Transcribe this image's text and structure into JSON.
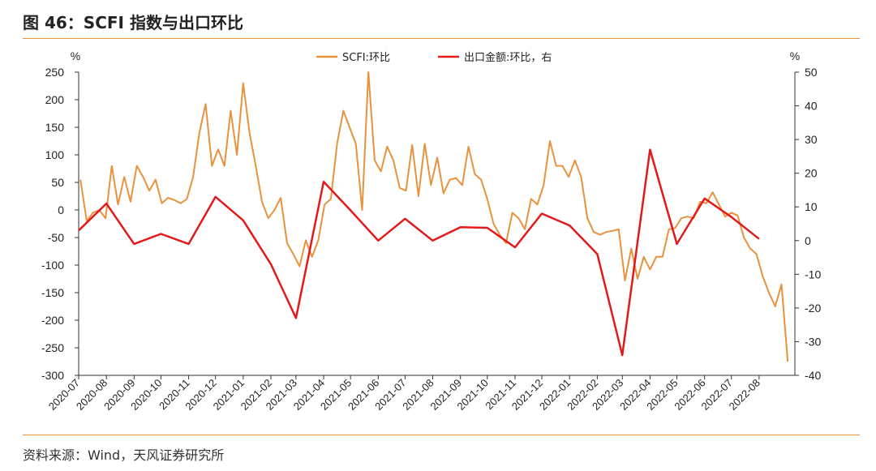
{
  "header": {
    "title": "图 46：SCFI 指数与出口环比"
  },
  "footer": {
    "source": "资料来源：Wind，天风证券研究所"
  },
  "chart_data": {
    "type": "line",
    "left_axis": {
      "unit": "%",
      "ylim": [
        -300,
        250
      ],
      "ticks": [
        250,
        200,
        150,
        100,
        50,
        0,
        -50,
        -100,
        -150,
        -200,
        -250,
        -300
      ]
    },
    "right_axis": {
      "unit": "%",
      "ylim": [
        -40,
        50
      ],
      "ticks": [
        50,
        40,
        30,
        20,
        10,
        0,
        -10,
        -20,
        -30,
        -40
      ]
    },
    "x_axis": {
      "range": [
        "2020-07-01",
        "2022-09-10"
      ],
      "ticks": [
        "2020-07",
        "2020-08",
        "2020-09",
        "2020-10",
        "2020-11",
        "2020-12",
        "2021-01",
        "2021-02",
        "2021-03",
        "2021-04",
        "2021-05",
        "2021-06",
        "2021-07",
        "2021-08",
        "2021-09",
        "2021-10",
        "2021-11",
        "2021-12",
        "2022-01",
        "2022-02",
        "2022-03",
        "2022-04",
        "2022-05",
        "2022-06",
        "2022-07",
        "2022-08"
      ]
    },
    "legend": {
      "placement": "top-center",
      "entries": [
        "SCFI:环比",
        "出口金额:环比，右"
      ]
    },
    "grid": false,
    "series": [
      {
        "name": "SCFI:环比",
        "axis": "left",
        "color": "#e8923e",
        "points": [
          [
            "2020-07-03",
            55
          ],
          [
            "2020-07-10",
            -20
          ],
          [
            "2020-07-17",
            -5
          ],
          [
            "2020-07-24",
            0
          ],
          [
            "2020-07-31",
            -15
          ],
          [
            "2020-08-07",
            80
          ],
          [
            "2020-08-14",
            10
          ],
          [
            "2020-08-21",
            60
          ],
          [
            "2020-08-28",
            15
          ],
          [
            "2020-09-04",
            80
          ],
          [
            "2020-09-11",
            60
          ],
          [
            "2020-09-18",
            35
          ],
          [
            "2020-09-25",
            55
          ],
          [
            "2020-10-02",
            12
          ],
          [
            "2020-10-09",
            22
          ],
          [
            "2020-10-16",
            18
          ],
          [
            "2020-10-23",
            12
          ],
          [
            "2020-10-30",
            20
          ],
          [
            "2020-11-06",
            60
          ],
          [
            "2020-11-13",
            140
          ],
          [
            "2020-11-20",
            192
          ],
          [
            "2020-11-27",
            80
          ],
          [
            "2020-12-04",
            110
          ],
          [
            "2020-12-11",
            80
          ],
          [
            "2020-12-18",
            180
          ],
          [
            "2020-12-25",
            100
          ],
          [
            "2021-01-01",
            230
          ],
          [
            "2021-01-08",
            140
          ],
          [
            "2021-01-15",
            80
          ],
          [
            "2021-01-22",
            15
          ],
          [
            "2021-01-29",
            -15
          ],
          [
            "2021-02-05",
            0
          ],
          [
            "2021-02-12",
            22
          ],
          [
            "2021-02-19",
            -60
          ],
          [
            "2021-02-26",
            -80
          ],
          [
            "2021-03-05",
            -102
          ],
          [
            "2021-03-12",
            -55
          ],
          [
            "2021-03-19",
            -85
          ],
          [
            "2021-03-26",
            -55
          ],
          [
            "2021-04-02",
            10
          ],
          [
            "2021-04-09",
            20
          ],
          [
            "2021-04-16",
            120
          ],
          [
            "2021-04-23",
            180
          ],
          [
            "2021-04-30",
            150
          ],
          [
            "2021-05-07",
            120
          ],
          [
            "2021-05-14",
            0
          ],
          [
            "2021-05-21",
            250
          ],
          [
            "2021-05-28",
            90
          ],
          [
            "2021-06-04",
            70
          ],
          [
            "2021-06-11",
            115
          ],
          [
            "2021-06-18",
            90
          ],
          [
            "2021-06-25",
            40
          ],
          [
            "2021-07-02",
            35
          ],
          [
            "2021-07-09",
            118
          ],
          [
            "2021-07-16",
            25
          ],
          [
            "2021-07-23",
            120
          ],
          [
            "2021-07-30",
            45
          ],
          [
            "2021-08-06",
            95
          ],
          [
            "2021-08-13",
            30
          ],
          [
            "2021-08-20",
            55
          ],
          [
            "2021-08-27",
            58
          ],
          [
            "2021-09-03",
            45
          ],
          [
            "2021-09-10",
            115
          ],
          [
            "2021-09-17",
            65
          ],
          [
            "2021-09-24",
            55
          ],
          [
            "2021-10-01",
            20
          ],
          [
            "2021-10-08",
            -25
          ],
          [
            "2021-10-15",
            -45
          ],
          [
            "2021-10-22",
            -60
          ],
          [
            "2021-10-29",
            -5
          ],
          [
            "2021-11-05",
            -15
          ],
          [
            "2021-11-12",
            -35
          ],
          [
            "2021-11-19",
            20
          ],
          [
            "2021-11-26",
            10
          ],
          [
            "2021-12-03",
            45
          ],
          [
            "2021-12-10",
            125
          ],
          [
            "2021-12-17",
            80
          ],
          [
            "2021-12-24",
            80
          ],
          [
            "2021-12-31",
            60
          ],
          [
            "2022-01-07",
            90
          ],
          [
            "2022-01-14",
            60
          ],
          [
            "2022-01-21",
            -15
          ],
          [
            "2022-01-28",
            -40
          ],
          [
            "2022-02-04",
            -45
          ],
          [
            "2022-02-11",
            -40
          ],
          [
            "2022-02-18",
            -38
          ],
          [
            "2022-02-25",
            -35
          ],
          [
            "2022-03-04",
            -128
          ],
          [
            "2022-03-11",
            -70
          ],
          [
            "2022-03-18",
            -125
          ],
          [
            "2022-03-25",
            -85
          ],
          [
            "2022-04-01",
            -108
          ],
          [
            "2022-04-08",
            -85
          ],
          [
            "2022-04-15",
            -85
          ],
          [
            "2022-04-22",
            -35
          ],
          [
            "2022-04-29",
            -33
          ],
          [
            "2022-05-06",
            -15
          ],
          [
            "2022-05-13",
            -12
          ],
          [
            "2022-05-20",
            -15
          ],
          [
            "2022-05-27",
            15
          ],
          [
            "2022-06-03",
            12
          ],
          [
            "2022-06-10",
            32
          ],
          [
            "2022-06-17",
            10
          ],
          [
            "2022-06-24",
            -12
          ],
          [
            "2022-07-01",
            -5
          ],
          [
            "2022-07-08",
            -10
          ],
          [
            "2022-07-15",
            -50
          ],
          [
            "2022-07-22",
            -70
          ],
          [
            "2022-07-29",
            -80
          ],
          [
            "2022-08-05",
            -120
          ],
          [
            "2022-08-12",
            -150
          ],
          [
            "2022-08-19",
            -175
          ],
          [
            "2022-08-26",
            -135
          ],
          [
            "2022-09-02",
            -275
          ]
        ]
      },
      {
        "name": "出口金额:环比，右",
        "axis": "right",
        "color": "#e3191b",
        "points": [
          [
            "2020-07-01",
            3
          ],
          [
            "2020-08-01",
            11
          ],
          [
            "2020-09-01",
            -1
          ],
          [
            "2020-10-01",
            2
          ],
          [
            "2020-11-01",
            -1
          ],
          [
            "2020-12-01",
            13
          ],
          [
            "2021-01-01",
            6
          ],
          [
            "2021-02-01",
            -7
          ],
          [
            "2021-03-01",
            -23
          ],
          [
            "2021-04-01",
            17.5
          ],
          [
            "2021-05-01",
            9
          ],
          [
            "2021-06-01",
            0
          ],
          [
            "2021-07-01",
            6.5
          ],
          [
            "2021-08-01",
            0
          ],
          [
            "2021-09-01",
            4
          ],
          [
            "2021-10-01",
            3.8
          ],
          [
            "2021-11-01",
            -2
          ],
          [
            "2021-12-01",
            8
          ],
          [
            "2022-01-01",
            4.5
          ],
          [
            "2022-02-01",
            -4
          ],
          [
            "2022-03-01",
            -34
          ],
          [
            "2022-04-01",
            27
          ],
          [
            "2022-05-01",
            -1
          ],
          [
            "2022-06-01",
            12.5
          ],
          [
            "2022-07-01",
            7
          ],
          [
            "2022-08-01",
            0.5
          ]
        ]
      }
    ]
  }
}
